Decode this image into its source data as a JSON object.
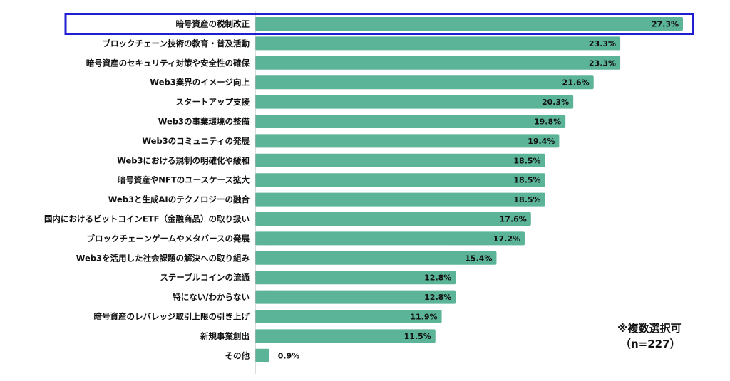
{
  "chart_data": {
    "type": "bar",
    "orientation": "horizontal",
    "categories": [
      "暗号資産の税制改正",
      "ブロックチェーン技術の教育・普及活動",
      "暗号資産のセキュリティ対策や安全性の確保",
      "Web3業界のイメージ向上",
      "スタートアップ支援",
      "Web3の事業環境の整備",
      "Web3のコミュニティの発展",
      "Web3における規制の明確化や緩和",
      "暗号資産やNFTのユースケース拡大",
      "Web3と生成AIのテクノロジーの融合",
      "国内におけるビットコインETF（金融商品）の取り扱い",
      "ブロックチェーンゲームやメタバースの発展",
      "Web3を活用した社会課題の解決への取り組み",
      "ステーブルコインの流通",
      "特にない/わからない",
      "暗号資産のレバレッジ取引上限の引き上げ",
      "新規事業創出",
      "その他"
    ],
    "values": [
      27.3,
      23.3,
      23.3,
      21.6,
      20.3,
      19.8,
      19.4,
      18.5,
      18.5,
      18.5,
      17.6,
      17.2,
      15.4,
      12.8,
      12.8,
      11.9,
      11.5,
      0.9
    ],
    "value_labels": [
      "27.3%",
      "23.3%",
      "23.3%",
      "21.6%",
      "20.3%",
      "19.8%",
      "19.4%",
      "18.5%",
      "18.5%",
      "18.5%",
      "17.6%",
      "17.2%",
      "15.4%",
      "12.8%",
      "12.8%",
      "11.9%",
      "11.5%",
      "0.9%"
    ],
    "highlighted_index": 0,
    "xlim": [
      0,
      27.3
    ],
    "grid": false,
    "colors": {
      "bar": "#5bb497",
      "highlight_border": "#1f1fd1",
      "axis": "#b5b5b5"
    }
  },
  "note": {
    "line1": "※複数選択可",
    "line2": "（n=227）"
  }
}
